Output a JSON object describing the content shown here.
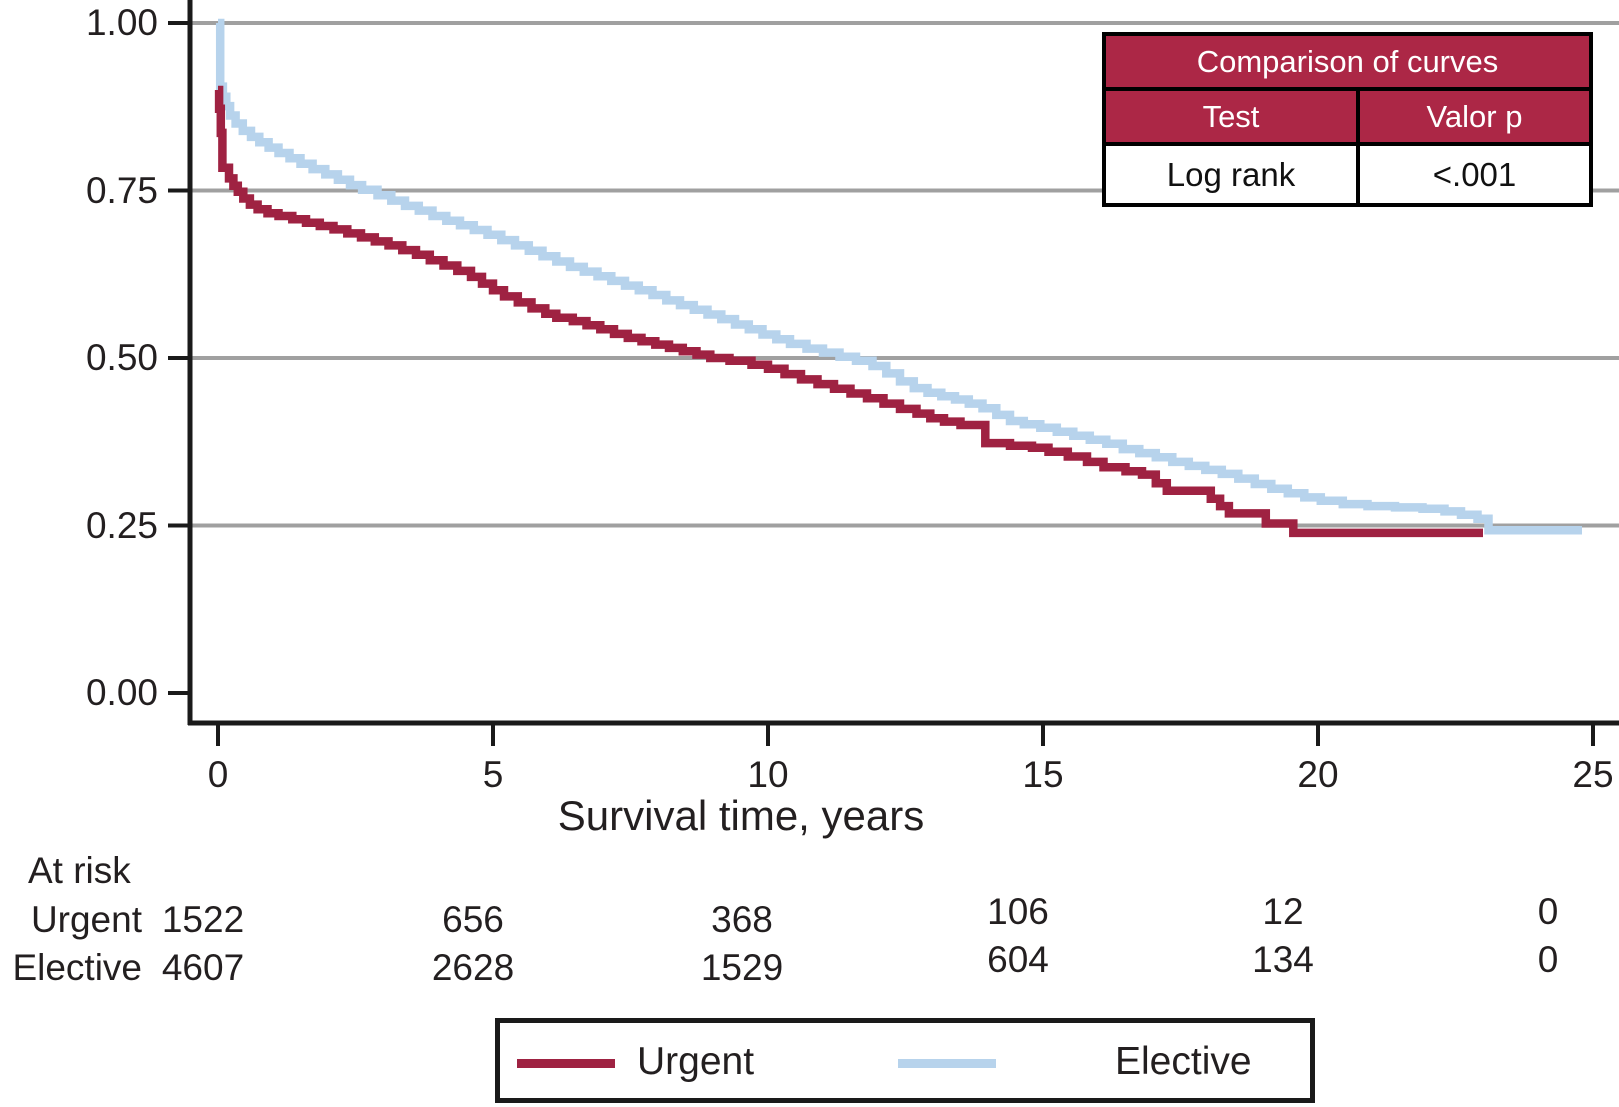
{
  "comparison_table": {
    "title": "Comparison of curves",
    "col_headers": [
      "Test",
      "Valor p"
    ],
    "row": {
      "test": "Log rank",
      "p_value": "<.001"
    }
  },
  "at_risk": {
    "title": "At risk",
    "rows": [
      {
        "label": "Urgent",
        "values": [
          "1522",
          "656",
          "368",
          "106",
          "12",
          "0"
        ]
      },
      {
        "label": "Elective",
        "values": [
          "4607",
          "2628",
          "1529",
          "604",
          "134",
          "0"
        ]
      }
    ]
  },
  "legend": {
    "items": [
      {
        "label": "Urgent",
        "color": "#9F2242"
      },
      {
        "label": "Elective",
        "color": "#B7D3EC"
      }
    ]
  },
  "chart_data": {
    "type": "line",
    "subtype": "kaplan-meier-step",
    "title": "",
    "xlabel": "Survival time, years",
    "ylabel": "",
    "xlim": [
      0,
      25
    ],
    "ylim": [
      0,
      1
    ],
    "x_ticks": [
      0,
      5,
      10,
      15,
      20,
      25
    ],
    "x_tick_labels": [
      "0",
      "5",
      "10",
      "15",
      "20",
      "25"
    ],
    "y_ticks": [
      1.0,
      0.75,
      0.5,
      0.25,
      0.0
    ],
    "y_tick_labels": [
      "1.00",
      "0.75",
      "0.50",
      "0.25",
      "0.00"
    ],
    "gridlines_at": [
      1.0,
      0.75,
      0.5,
      0.25
    ],
    "grid_color": "#A0A0A0",
    "axis_color": "#1A1A1A",
    "legend_position": "bottom",
    "stat_test": {
      "name": "Log rank",
      "p": "<.001"
    },
    "series": [
      {
        "name": "Elective",
        "color": "#B7D3EC",
        "points": [
          [
            0,
            1.0
          ],
          [
            0.04,
            0.905
          ],
          [
            0.09,
            0.89
          ],
          [
            0.15,
            0.876
          ],
          [
            0.22,
            0.862
          ],
          [
            0.32,
            0.85
          ],
          [
            0.45,
            0.839
          ],
          [
            0.6,
            0.83
          ],
          [
            0.75,
            0.822
          ],
          [
            0.92,
            0.814
          ],
          [
            1.1,
            0.806
          ],
          [
            1.3,
            0.798
          ],
          [
            1.5,
            0.79
          ],
          [
            1.72,
            0.782
          ],
          [
            1.95,
            0.774
          ],
          [
            2.18,
            0.766
          ],
          [
            2.4,
            0.758
          ],
          [
            2.62,
            0.751
          ],
          [
            2.9,
            0.743
          ],
          [
            3.15,
            0.735
          ],
          [
            3.4,
            0.727
          ],
          [
            3.65,
            0.72
          ],
          [
            3.9,
            0.712
          ],
          [
            4.15,
            0.705
          ],
          [
            4.4,
            0.698
          ],
          [
            4.65,
            0.691
          ],
          [
            4.9,
            0.684
          ],
          [
            5.15,
            0.676
          ],
          [
            5.4,
            0.668
          ],
          [
            5.65,
            0.66
          ],
          [
            5.9,
            0.652
          ],
          [
            6.15,
            0.644
          ],
          [
            6.4,
            0.636
          ],
          [
            6.65,
            0.629
          ],
          [
            6.9,
            0.622
          ],
          [
            7.15,
            0.615
          ],
          [
            7.4,
            0.608
          ],
          [
            7.65,
            0.601
          ],
          [
            7.9,
            0.594
          ],
          [
            8.15,
            0.586
          ],
          [
            8.4,
            0.579
          ],
          [
            8.65,
            0.572
          ],
          [
            8.9,
            0.565
          ],
          [
            9.15,
            0.558
          ],
          [
            9.4,
            0.55
          ],
          [
            9.65,
            0.543
          ],
          [
            9.9,
            0.535
          ],
          [
            10.15,
            0.528
          ],
          [
            10.4,
            0.521
          ],
          [
            10.7,
            0.514
          ],
          [
            11.0,
            0.508
          ],
          [
            11.3,
            0.502
          ],
          [
            11.6,
            0.496
          ],
          [
            11.9,
            0.488
          ],
          [
            12.15,
            0.477
          ],
          [
            12.4,
            0.465
          ],
          [
            12.65,
            0.455
          ],
          [
            12.9,
            0.448
          ],
          [
            13.15,
            0.443
          ],
          [
            13.4,
            0.438
          ],
          [
            13.65,
            0.432
          ],
          [
            13.9,
            0.425
          ],
          [
            14.15,
            0.415
          ],
          [
            14.4,
            0.406
          ],
          [
            14.65,
            0.401
          ],
          [
            14.95,
            0.396
          ],
          [
            15.25,
            0.39
          ],
          [
            15.55,
            0.384
          ],
          [
            15.85,
            0.378
          ],
          [
            16.15,
            0.372
          ],
          [
            16.45,
            0.364
          ],
          [
            16.75,
            0.358
          ],
          [
            17.05,
            0.352
          ],
          [
            17.35,
            0.345
          ],
          [
            17.65,
            0.339
          ],
          [
            17.95,
            0.333
          ],
          [
            18.25,
            0.327
          ],
          [
            18.55,
            0.32
          ],
          [
            18.85,
            0.312
          ],
          [
            19.15,
            0.305
          ],
          [
            19.45,
            0.298
          ],
          [
            19.75,
            0.292
          ],
          [
            20.05,
            0.287
          ],
          [
            20.45,
            0.282
          ],
          [
            20.9,
            0.279
          ],
          [
            21.4,
            0.277
          ],
          [
            21.9,
            0.275
          ],
          [
            22.3,
            0.271
          ],
          [
            22.6,
            0.266
          ],
          [
            22.9,
            0.26
          ],
          [
            23.1,
            0.243
          ],
          [
            24.8,
            0.243
          ]
        ]
      },
      {
        "name": "Urgent",
        "color": "#9F2242",
        "points": [
          [
            0,
            0.9
          ],
          [
            0.02,
            0.872
          ],
          [
            0.05,
            0.836
          ],
          [
            0.08,
            0.784
          ],
          [
            0.2,
            0.768
          ],
          [
            0.28,
            0.757
          ],
          [
            0.36,
            0.748
          ],
          [
            0.46,
            0.738
          ],
          [
            0.58,
            0.729
          ],
          [
            0.72,
            0.722
          ],
          [
            0.9,
            0.716
          ],
          [
            1.1,
            0.712
          ],
          [
            1.35,
            0.707
          ],
          [
            1.6,
            0.702
          ],
          [
            1.85,
            0.697
          ],
          [
            2.1,
            0.692
          ],
          [
            2.35,
            0.686
          ],
          [
            2.6,
            0.68
          ],
          [
            2.85,
            0.674
          ],
          [
            3.1,
            0.668
          ],
          [
            3.35,
            0.661
          ],
          [
            3.6,
            0.654
          ],
          [
            3.85,
            0.646
          ],
          [
            4.1,
            0.638
          ],
          [
            4.35,
            0.63
          ],
          [
            4.6,
            0.621
          ],
          [
            4.8,
            0.611
          ],
          [
            5.0,
            0.601
          ],
          [
            5.2,
            0.592
          ],
          [
            5.45,
            0.583
          ],
          [
            5.7,
            0.574
          ],
          [
            5.95,
            0.566
          ],
          [
            6.15,
            0.56
          ],
          [
            6.45,
            0.555
          ],
          [
            6.7,
            0.549
          ],
          [
            6.95,
            0.543
          ],
          [
            7.2,
            0.536
          ],
          [
            7.45,
            0.53
          ],
          [
            7.7,
            0.525
          ],
          [
            7.95,
            0.52
          ],
          [
            8.2,
            0.515
          ],
          [
            8.45,
            0.51
          ],
          [
            8.7,
            0.505
          ],
          [
            8.95,
            0.5
          ],
          [
            9.3,
            0.496
          ],
          [
            9.7,
            0.49
          ],
          [
            10.0,
            0.484
          ],
          [
            10.3,
            0.476
          ],
          [
            10.6,
            0.468
          ],
          [
            10.9,
            0.461
          ],
          [
            11.2,
            0.454
          ],
          [
            11.5,
            0.447
          ],
          [
            11.8,
            0.44
          ],
          [
            12.1,
            0.432
          ],
          [
            12.4,
            0.424
          ],
          [
            12.7,
            0.417
          ],
          [
            12.95,
            0.41
          ],
          [
            13.2,
            0.405
          ],
          [
            13.5,
            0.4
          ],
          [
            13.95,
            0.373
          ],
          [
            14.4,
            0.369
          ],
          [
            14.8,
            0.366
          ],
          [
            15.1,
            0.36
          ],
          [
            15.45,
            0.353
          ],
          [
            15.8,
            0.345
          ],
          [
            16.1,
            0.337
          ],
          [
            16.5,
            0.331
          ],
          [
            16.8,
            0.326
          ],
          [
            17.05,
            0.313
          ],
          [
            17.25,
            0.302
          ],
          [
            18.05,
            0.29
          ],
          [
            18.22,
            0.279
          ],
          [
            18.38,
            0.268
          ],
          [
            19.05,
            0.253
          ],
          [
            19.55,
            0.239
          ],
          [
            23.0,
            0.239
          ]
        ]
      }
    ],
    "at_risk_table": {
      "label": "At risk",
      "times": [
        0,
        5,
        10,
        15,
        20,
        25
      ],
      "Urgent": [
        1522,
        656,
        368,
        106,
        12,
        0
      ],
      "Elective": [
        4607,
        2628,
        1529,
        604,
        134,
        0
      ]
    }
  }
}
